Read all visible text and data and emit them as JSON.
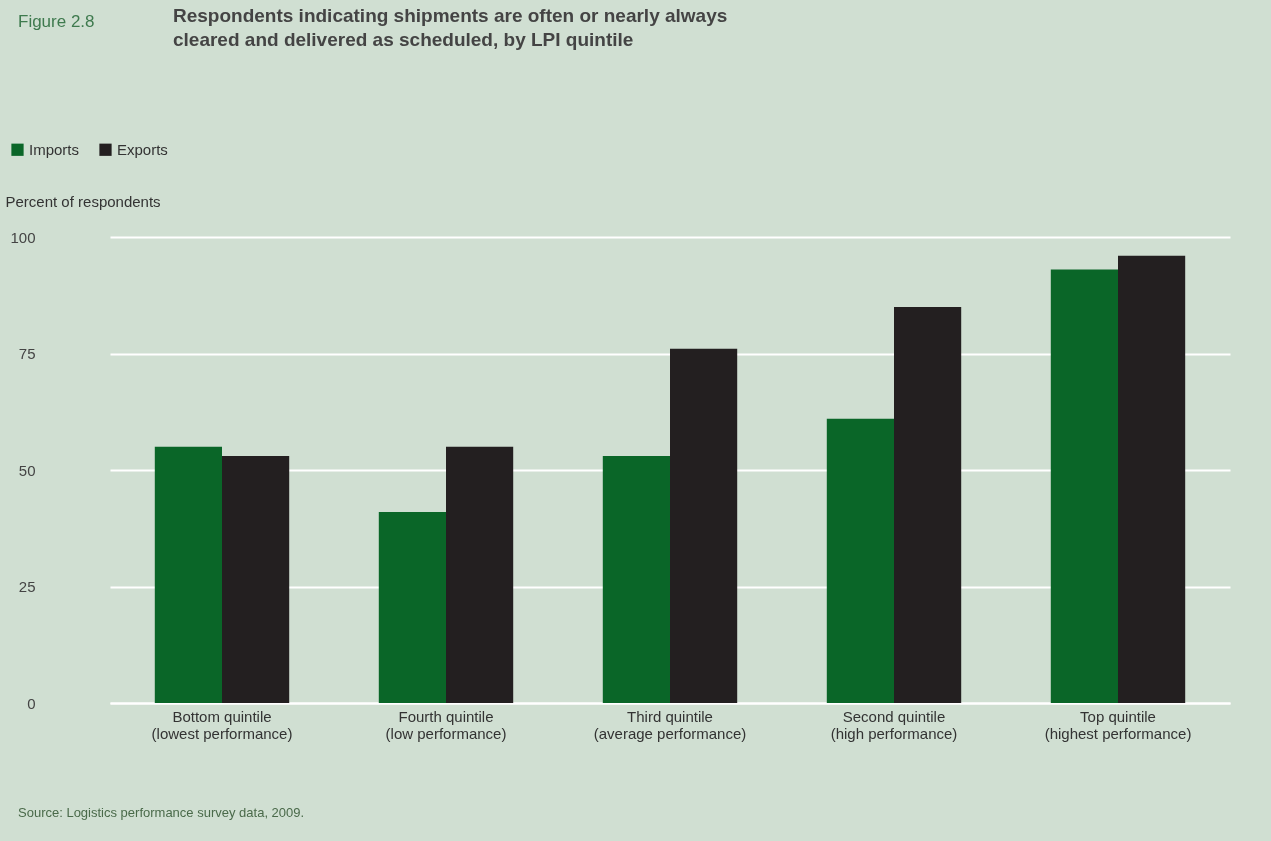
{
  "chart_data": {
    "type": "bar",
    "title": "Respondents indicating shipments are often or nearly always\ncleared and delivered as scheduled, by LPI quintile",
    "ylabel": "Percent of respondents",
    "categories": [
      "Bottom quintile\n(lowest performance)",
      "Fourth quintile\n(low performance)",
      "Third quintile\n(average performance)",
      "Second quintile\n(high performance)",
      "Top quintile\n(highest performance)"
    ],
    "series": [
      {
        "name": "Imports",
        "color": "#0a6628",
        "values": [
          55,
          41,
          53,
          61,
          93
        ]
      },
      {
        "name": "Exports",
        "color": "#231f20",
        "values": [
          53,
          55,
          76,
          85,
          96
        ]
      }
    ],
    "ylim": [
      0,
      100
    ],
    "yticks": [
      0,
      25,
      50,
      75,
      100
    ],
    "grid": "y",
    "legend": "top left",
    "annotations": [
      "Figure 2.8",
      "Source: Logistics performance survey data, 2009."
    ]
  }
}
